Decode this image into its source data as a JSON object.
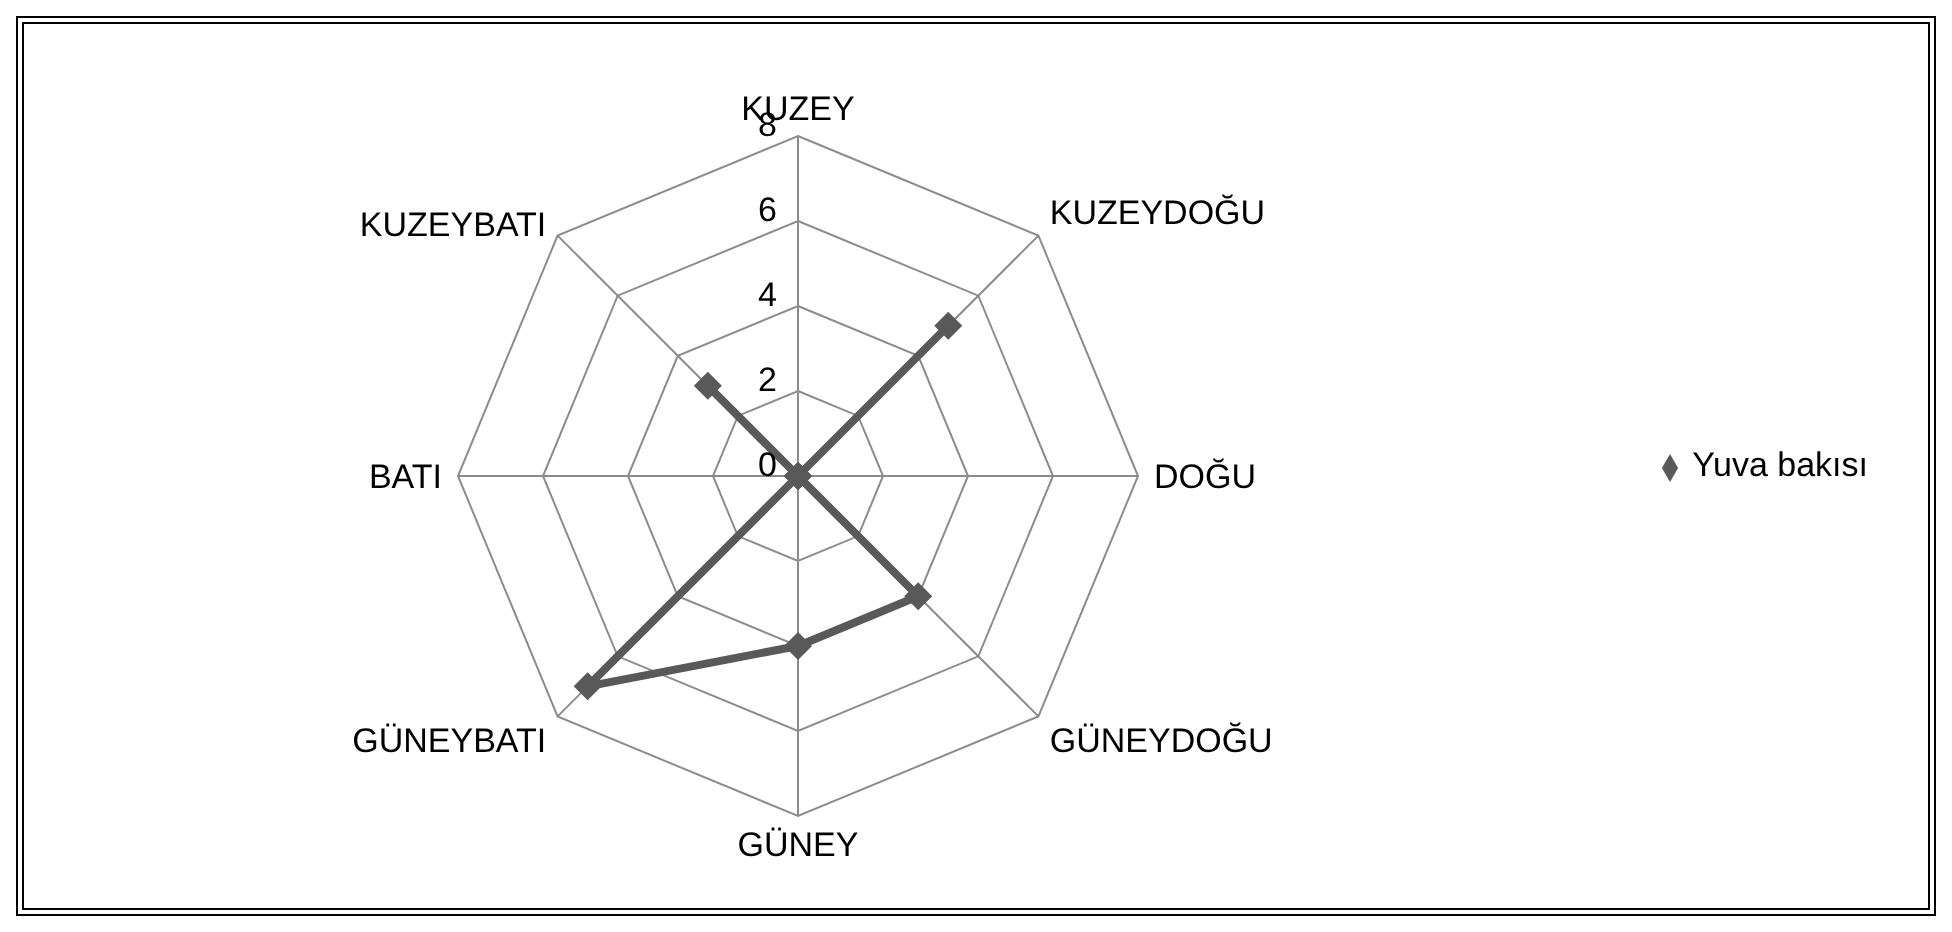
{
  "chart_data": {
    "type": "radar",
    "categories": [
      "KUZEY",
      "KUZEYDOĞU",
      "DOĞU",
      "GÜNEYDOĞU",
      "GÜNEY",
      "GÜNEYBATI",
      "BATI",
      "KUZEYBATI"
    ],
    "series": [
      {
        "name": "Yuva bakısı",
        "color": "#595959",
        "values": [
          0,
          5,
          0,
          4,
          4,
          7,
          0,
          3
        ]
      }
    ],
    "ylim": [
      0,
      8
    ],
    "yticks": [
      0,
      2,
      4,
      6,
      8
    ],
    "grid": true,
    "legend": "right",
    "marker": "diamond",
    "line_style": "solid"
  }
}
